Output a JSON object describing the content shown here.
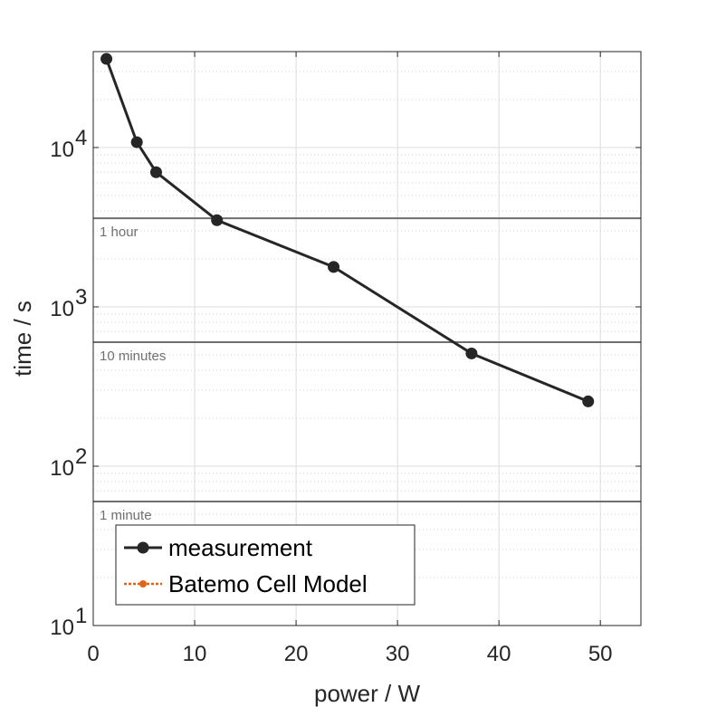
{
  "chart_data": {
    "type": "line",
    "xlabel": "power / W",
    "ylabel": "time / s",
    "xlim": [
      0,
      54
    ],
    "ylim": [
      10,
      40000
    ],
    "yscale": "log",
    "xticks": [
      "0",
      "10",
      "20",
      "30",
      "40",
      "50"
    ],
    "yticks": [
      {
        "base": "10",
        "exp": "1"
      },
      {
        "base": "10",
        "exp": "2"
      },
      {
        "base": "10",
        "exp": "3"
      },
      {
        "base": "10",
        "exp": "4"
      }
    ],
    "grid": true,
    "series": [
      {
        "name": "measurement",
        "color": "#262626",
        "x": [
          1.3,
          4.3,
          6.2,
          12.2,
          23.7,
          37.3,
          48.8
        ],
        "y": [
          36000,
          10800,
          7000,
          3500,
          1780,
          510,
          255
        ]
      },
      {
        "name": "Batemo Cell Model",
        "color": "#e06418",
        "x": [],
        "y": []
      }
    ],
    "reference_lines": [
      {
        "y": 3600,
        "label": "1 hour"
      },
      {
        "y": 600,
        "label": "10 minutes"
      },
      {
        "y": 60,
        "label": "1 minute"
      }
    ],
    "legend": {
      "position": "bottom-left",
      "entries": [
        "measurement",
        "Batemo Cell Model"
      ]
    }
  }
}
